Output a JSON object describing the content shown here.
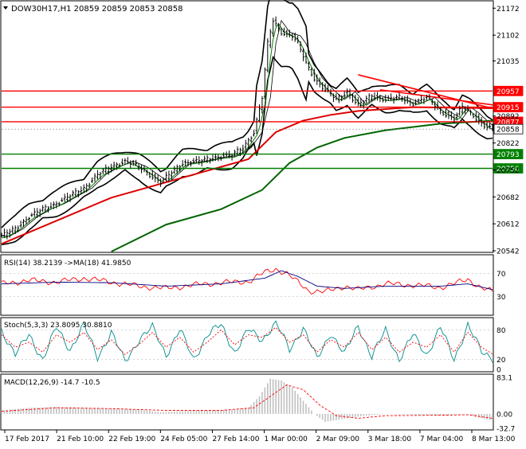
{
  "chart_data": [
    {
      "type": "line",
      "title": "DOW30H17,H1  20859 20859 20853 20858",
      "symbol_header": "DOW30H17,H1",
      "ohlc": [
        20859,
        20859,
        20853,
        20858
      ],
      "ylim": [
        20542,
        21185
      ],
      "yticks": [
        21172,
        21102,
        21035,
        20892,
        20822,
        20752,
        20682,
        20612,
        20542
      ],
      "xlabels": [
        "17 Feb 2017",
        "21 Feb 10:00",
        "22 Feb 19:00",
        "24 Feb 05:00",
        "27 Feb 14:00",
        "1 Mar 00:00",
        "2 Mar 09:00",
        "3 Mar 18:00",
        "7 Mar 04:00",
        "8 Mar 13:00"
      ],
      "price_key": [
        [
          0,
          20580
        ],
        [
          5,
          20600
        ],
        [
          10,
          20630
        ],
        [
          15,
          20650
        ],
        [
          20,
          20665
        ],
        [
          25,
          20685
        ],
        [
          30,
          20705
        ],
        [
          35,
          20740
        ],
        [
          40,
          20760
        ],
        [
          45,
          20775
        ],
        [
          50,
          20760
        ],
        [
          55,
          20735
        ],
        [
          58,
          20720
        ],
        [
          62,
          20745
        ],
        [
          66,
          20770
        ],
        [
          72,
          20775
        ],
        [
          78,
          20785
        ],
        [
          84,
          20790
        ],
        [
          88,
          20810
        ],
        [
          92,
          20850
        ],
        [
          95,
          20940
        ],
        [
          97,
          21080
        ],
        [
          99,
          21140
        ],
        [
          102,
          21110
        ],
        [
          106,
          21100
        ],
        [
          108,
          21080
        ],
        [
          111,
          21030
        ],
        [
          114,
          20990
        ],
        [
          118,
          20960
        ],
        [
          122,
          20935
        ],
        [
          126,
          20955
        ],
        [
          130,
          20920
        ],
        [
          135,
          20945
        ],
        [
          140,
          20935
        ],
        [
          145,
          20940
        ],
        [
          150,
          20925
        ],
        [
          155,
          20940
        ],
        [
          160,
          20905
        ],
        [
          165,
          20885
        ],
        [
          168,
          20915
        ],
        [
          171,
          20900
        ],
        [
          174,
          20880
        ],
        [
          177,
          20862
        ],
        [
          179,
          20858
        ]
      ],
      "horizontal_levels": [
        {
          "label": "20957",
          "value": 20957,
          "color": "#ff0000"
        },
        {
          "label": "20915",
          "value": 20915,
          "color": "#ff0000"
        },
        {
          "label": "20877",
          "value": 20877,
          "color": "#ff0000"
        },
        {
          "label": "20858",
          "value": 20858,
          "color": "#000000"
        },
        {
          "label": "20793",
          "value": 20793,
          "color": "#008000"
        },
        {
          "label": "20756",
          "value": 20756,
          "color": "#008000"
        }
      ],
      "trendlines": [
        {
          "from": [
            130,
            20999
          ],
          "to": [
            180,
            20910
          ],
          "color": "#ff0000"
        },
        {
          "from": [
            138,
            20960
          ],
          "to": [
            180,
            20920
          ],
          "color": "#ff0000"
        }
      ],
      "series": [
        {
          "name": "",
          "color": "#dd0000",
          "points": [
            [
              0,
              20560
            ],
            [
              20,
              20620
            ],
            [
              40,
              20680
            ],
            [
              60,
              20720
            ],
            [
              80,
              20760
            ],
            [
              90,
              20780
            ],
            [
              100,
              20850
            ],
            [
              110,
              20880
            ],
            [
              120,
              20895
            ],
            [
              130,
              20905
            ],
            [
              150,
              20915
            ],
            [
              180,
              20912
            ]
          ]
        },
        {
          "name": "",
          "color": "#006400",
          "points": [
            [
              40,
              20540
            ],
            [
              60,
              20610
            ],
            [
              80,
              20650
            ],
            [
              95,
              20700
            ],
            [
              105,
              20770
            ],
            [
              115,
              20810
            ],
            [
              125,
              20835
            ],
            [
              140,
              20855
            ],
            [
              160,
              20872
            ],
            [
              180,
              20880
            ]
          ]
        }
      ],
      "colors": {
        "price": "#000000",
        "bands": "#000000",
        "ma_fast": "#008000",
        "level_red": "#ff0000",
        "level_green": "#008000",
        "level_black": "#000000"
      }
    },
    {
      "type": "line",
      "title": "RSI(14) 38.2139  ->MA(18) 41.9850",
      "ylim": [
        0,
        100
      ],
      "yticks": [
        70,
        30
      ],
      "series_key": {
        "rsi": [
          [
            0,
            52
          ],
          [
            10,
            58
          ],
          [
            20,
            55
          ],
          [
            30,
            62
          ],
          [
            40,
            55
          ],
          [
            50,
            48
          ],
          [
            60,
            44
          ],
          [
            70,
            50
          ],
          [
            80,
            54
          ],
          [
            90,
            56
          ],
          [
            96,
            72
          ],
          [
            100,
            78
          ],
          [
            104,
            70
          ],
          [
            108,
            55
          ],
          [
            112,
            40
          ],
          [
            118,
            38
          ],
          [
            125,
            48
          ],
          [
            130,
            42
          ],
          [
            140,
            52
          ],
          [
            150,
            50
          ],
          [
            160,
            46
          ],
          [
            165,
            52
          ],
          [
            170,
            60
          ],
          [
            175,
            45
          ],
          [
            179,
            38
          ]
        ],
        "ma": [
          [
            0,
            52
          ],
          [
            20,
            55
          ],
          [
            40,
            54
          ],
          [
            60,
            48
          ],
          [
            80,
            52
          ],
          [
            96,
            62
          ],
          [
            102,
            75
          ],
          [
            108,
            65
          ],
          [
            115,
            48
          ],
          [
            125,
            44
          ],
          [
            140,
            48
          ],
          [
            160,
            48
          ],
          [
            170,
            52
          ],
          [
            179,
            42
          ]
        ]
      },
      "colors": {
        "rsi": "#ff0000",
        "ma": "#000080"
      }
    },
    {
      "type": "line",
      "title": "Stoch(5,3,3) 23.8095 30.8810",
      "ylim": [
        0,
        100
      ],
      "yticks": [
        80,
        20,
        0
      ],
      "series_key": {
        "k": [
          [
            0,
            80
          ],
          [
            5,
            30
          ],
          [
            10,
            70
          ],
          [
            15,
            20
          ],
          [
            20,
            85
          ],
          [
            25,
            40
          ],
          [
            30,
            90
          ],
          [
            35,
            25
          ],
          [
            40,
            75
          ],
          [
            45,
            15
          ],
          [
            50,
            60
          ],
          [
            55,
            85
          ],
          [
            60,
            30
          ],
          [
            65,
            80
          ],
          [
            70,
            20
          ],
          [
            75,
            70
          ],
          [
            80,
            90
          ],
          [
            85,
            35
          ],
          [
            90,
            80
          ],
          [
            95,
            60
          ],
          [
            100,
            95
          ],
          [
            105,
            40
          ],
          [
            110,
            85
          ],
          [
            115,
            20
          ],
          [
            120,
            75
          ],
          [
            125,
            30
          ],
          [
            130,
            90
          ],
          [
            135,
            25
          ],
          [
            140,
            80
          ],
          [
            145,
            20
          ],
          [
            150,
            70
          ],
          [
            155,
            30
          ],
          [
            160,
            85
          ],
          [
            165,
            20
          ],
          [
            170,
            90
          ],
          [
            175,
            35
          ],
          [
            179,
            24
          ]
        ],
        "d": [
          [
            0,
            70
          ],
          [
            5,
            45
          ],
          [
            10,
            55
          ],
          [
            15,
            35
          ],
          [
            20,
            70
          ],
          [
            25,
            55
          ],
          [
            30,
            75
          ],
          [
            35,
            40
          ],
          [
            40,
            60
          ],
          [
            45,
            30
          ],
          [
            50,
            50
          ],
          [
            55,
            75
          ],
          [
            60,
            45
          ],
          [
            65,
            65
          ],
          [
            70,
            35
          ],
          [
            75,
            55
          ],
          [
            80,
            80
          ],
          [
            85,
            50
          ],
          [
            90,
            70
          ],
          [
            95,
            65
          ],
          [
            100,
            85
          ],
          [
            105,
            55
          ],
          [
            110,
            70
          ],
          [
            115,
            35
          ],
          [
            120,
            60
          ],
          [
            125,
            45
          ],
          [
            130,
            75
          ],
          [
            135,
            40
          ],
          [
            140,
            65
          ],
          [
            145,
            35
          ],
          [
            150,
            55
          ],
          [
            155,
            45
          ],
          [
            160,
            70
          ],
          [
            165,
            35
          ],
          [
            170,
            75
          ],
          [
            175,
            45
          ],
          [
            179,
            31
          ]
        ]
      },
      "colors": {
        "k": "#008b8b",
        "d": "#ff0000"
      }
    },
    {
      "type": "bar",
      "title": "MACD(12,26,9) -14.7 -10.5",
      "ylim": [
        -32.7,
        83.1
      ],
      "yticks": [
        83.1,
        0.0,
        -32.7
      ],
      "series_key": {
        "macd": [
          [
            0,
            8
          ],
          [
            10,
            14
          ],
          [
            20,
            16
          ],
          [
            30,
            14
          ],
          [
            40,
            12
          ],
          [
            50,
            10
          ],
          [
            58,
            4
          ],
          [
            65,
            6
          ],
          [
            75,
            8
          ],
          [
            85,
            10
          ],
          [
            90,
            14
          ],
          [
            94,
            40
          ],
          [
            98,
            80
          ],
          [
            102,
            76
          ],
          [
            106,
            60
          ],
          [
            110,
            30
          ],
          [
            114,
            0
          ],
          [
            118,
            -18
          ],
          [
            122,
            -14
          ],
          [
            130,
            -6
          ],
          [
            140,
            0
          ],
          [
            150,
            -2
          ],
          [
            160,
            -4
          ],
          [
            165,
            -2
          ],
          [
            170,
            0
          ],
          [
            175,
            -10
          ],
          [
            179,
            -15
          ]
        ],
        "signal": [
          [
            0,
            6
          ],
          [
            20,
            14
          ],
          [
            40,
            12
          ],
          [
            60,
            8
          ],
          [
            80,
            8
          ],
          [
            92,
            14
          ],
          [
            98,
            40
          ],
          [
            104,
            66
          ],
          [
            110,
            55
          ],
          [
            116,
            20
          ],
          [
            122,
            -4
          ],
          [
            130,
            -10
          ],
          [
            140,
            -4
          ],
          [
            160,
            -3
          ],
          [
            170,
            -2
          ],
          [
            179,
            -10
          ]
        ]
      },
      "colors": {
        "macd": "#c0c0c0",
        "signal": "#ff0000"
      }
    }
  ]
}
